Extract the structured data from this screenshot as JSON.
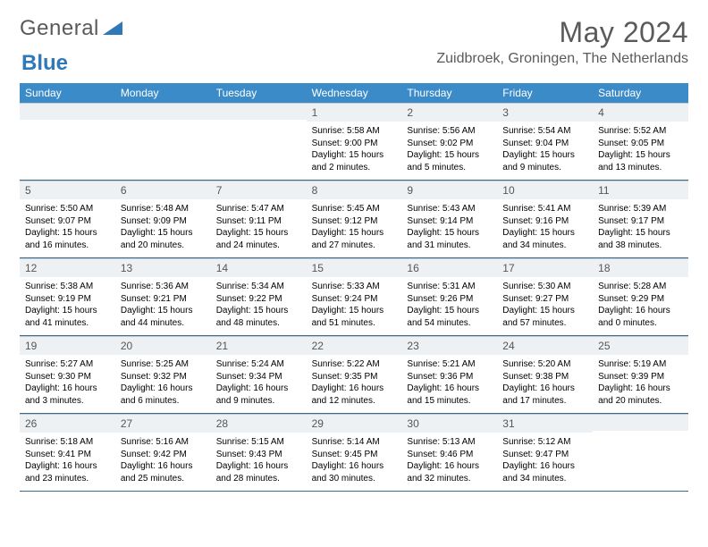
{
  "logo": {
    "part1": "General",
    "part2": "Blue"
  },
  "title": "May 2024",
  "location": "Zuidbroek, Groningen, The Netherlands",
  "weekday_header_bg": "#3b8bc9",
  "weekday_header_fg": "#ffffff",
  "daynum_bg": "#eef1f3",
  "rule_color": "#3b6a8f",
  "weekdays": [
    "Sunday",
    "Monday",
    "Tuesday",
    "Wednesday",
    "Thursday",
    "Friday",
    "Saturday"
  ],
  "weeks": [
    [
      {
        "n": "",
        "sr": "",
        "ss": "",
        "dl": ""
      },
      {
        "n": "",
        "sr": "",
        "ss": "",
        "dl": ""
      },
      {
        "n": "",
        "sr": "",
        "ss": "",
        "dl": ""
      },
      {
        "n": "1",
        "sr": "5:58 AM",
        "ss": "9:00 PM",
        "dl": "15 hours and 2 minutes."
      },
      {
        "n": "2",
        "sr": "5:56 AM",
        "ss": "9:02 PM",
        "dl": "15 hours and 5 minutes."
      },
      {
        "n": "3",
        "sr": "5:54 AM",
        "ss": "9:04 PM",
        "dl": "15 hours and 9 minutes."
      },
      {
        "n": "4",
        "sr": "5:52 AM",
        "ss": "9:05 PM",
        "dl": "15 hours and 13 minutes."
      }
    ],
    [
      {
        "n": "5",
        "sr": "5:50 AM",
        "ss": "9:07 PM",
        "dl": "15 hours and 16 minutes."
      },
      {
        "n": "6",
        "sr": "5:48 AM",
        "ss": "9:09 PM",
        "dl": "15 hours and 20 minutes."
      },
      {
        "n": "7",
        "sr": "5:47 AM",
        "ss": "9:11 PM",
        "dl": "15 hours and 24 minutes."
      },
      {
        "n": "8",
        "sr": "5:45 AM",
        "ss": "9:12 PM",
        "dl": "15 hours and 27 minutes."
      },
      {
        "n": "9",
        "sr": "5:43 AM",
        "ss": "9:14 PM",
        "dl": "15 hours and 31 minutes."
      },
      {
        "n": "10",
        "sr": "5:41 AM",
        "ss": "9:16 PM",
        "dl": "15 hours and 34 minutes."
      },
      {
        "n": "11",
        "sr": "5:39 AM",
        "ss": "9:17 PM",
        "dl": "15 hours and 38 minutes."
      }
    ],
    [
      {
        "n": "12",
        "sr": "5:38 AM",
        "ss": "9:19 PM",
        "dl": "15 hours and 41 minutes."
      },
      {
        "n": "13",
        "sr": "5:36 AM",
        "ss": "9:21 PM",
        "dl": "15 hours and 44 minutes."
      },
      {
        "n": "14",
        "sr": "5:34 AM",
        "ss": "9:22 PM",
        "dl": "15 hours and 48 minutes."
      },
      {
        "n": "15",
        "sr": "5:33 AM",
        "ss": "9:24 PM",
        "dl": "15 hours and 51 minutes."
      },
      {
        "n": "16",
        "sr": "5:31 AM",
        "ss": "9:26 PM",
        "dl": "15 hours and 54 minutes."
      },
      {
        "n": "17",
        "sr": "5:30 AM",
        "ss": "9:27 PM",
        "dl": "15 hours and 57 minutes."
      },
      {
        "n": "18",
        "sr": "5:28 AM",
        "ss": "9:29 PM",
        "dl": "16 hours and 0 minutes."
      }
    ],
    [
      {
        "n": "19",
        "sr": "5:27 AM",
        "ss": "9:30 PM",
        "dl": "16 hours and 3 minutes."
      },
      {
        "n": "20",
        "sr": "5:25 AM",
        "ss": "9:32 PM",
        "dl": "16 hours and 6 minutes."
      },
      {
        "n": "21",
        "sr": "5:24 AM",
        "ss": "9:34 PM",
        "dl": "16 hours and 9 minutes."
      },
      {
        "n": "22",
        "sr": "5:22 AM",
        "ss": "9:35 PM",
        "dl": "16 hours and 12 minutes."
      },
      {
        "n": "23",
        "sr": "5:21 AM",
        "ss": "9:36 PM",
        "dl": "16 hours and 15 minutes."
      },
      {
        "n": "24",
        "sr": "5:20 AM",
        "ss": "9:38 PM",
        "dl": "16 hours and 17 minutes."
      },
      {
        "n": "25",
        "sr": "5:19 AM",
        "ss": "9:39 PM",
        "dl": "16 hours and 20 minutes."
      }
    ],
    [
      {
        "n": "26",
        "sr": "5:18 AM",
        "ss": "9:41 PM",
        "dl": "16 hours and 23 minutes."
      },
      {
        "n": "27",
        "sr": "5:16 AM",
        "ss": "9:42 PM",
        "dl": "16 hours and 25 minutes."
      },
      {
        "n": "28",
        "sr": "5:15 AM",
        "ss": "9:43 PM",
        "dl": "16 hours and 28 minutes."
      },
      {
        "n": "29",
        "sr": "5:14 AM",
        "ss": "9:45 PM",
        "dl": "16 hours and 30 minutes."
      },
      {
        "n": "30",
        "sr": "5:13 AM",
        "ss": "9:46 PM",
        "dl": "16 hours and 32 minutes."
      },
      {
        "n": "31",
        "sr": "5:12 AM",
        "ss": "9:47 PM",
        "dl": "16 hours and 34 minutes."
      },
      {
        "n": "",
        "sr": "",
        "ss": "",
        "dl": ""
      }
    ]
  ],
  "labels": {
    "sunrise": "Sunrise: ",
    "sunset": "Sunset: ",
    "daylight": "Daylight: "
  }
}
